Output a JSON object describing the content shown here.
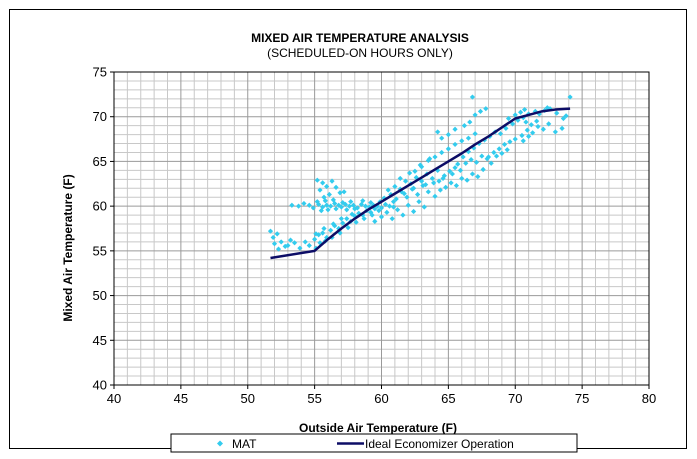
{
  "chart_data": {
    "type": "scatter",
    "title": "MIXED AIR TEMPERATURE ANALYSIS",
    "subtitle": "(SCHEDULED-ON HOURS ONLY)",
    "xlabel": "Outside Air Temperature (F)",
    "ylabel": "Mixed Air Temperature (F)",
    "xlim": [
      40,
      80
    ],
    "ylim": [
      40,
      75
    ],
    "x_major_ticks": [
      "40",
      "45",
      "50",
      "55",
      "60",
      "65",
      "70",
      "75",
      "80"
    ],
    "y_major_ticks": [
      "40",
      "45",
      "50",
      "55",
      "60",
      "65",
      "70",
      "75"
    ],
    "grid": true,
    "minor_grid_step": 1,
    "legend_position": "bottom",
    "series": [
      {
        "name": "MAT",
        "kind": "scatter",
        "marker": "diamond",
        "color": "#33CCEE",
        "points": [
          [
            51.7,
            57.2
          ],
          [
            51.9,
            56.5
          ],
          [
            52.0,
            55.8
          ],
          [
            52.2,
            56.9
          ],
          [
            52.5,
            56.0
          ],
          [
            52.8,
            55.5
          ],
          [
            53.2,
            56.2
          ],
          [
            53.5,
            55.9
          ],
          [
            53.9,
            55.3
          ],
          [
            54.3,
            56.0
          ],
          [
            52.3,
            55.2
          ],
          [
            53.0,
            55.6
          ],
          [
            54.6,
            55.6
          ],
          [
            55.1,
            55.3
          ],
          [
            53.3,
            60.1
          ],
          [
            53.8,
            60.0
          ],
          [
            54.2,
            60.3
          ],
          [
            54.6,
            60.1
          ],
          [
            54.9,
            59.8
          ],
          [
            55.3,
            60.2
          ],
          [
            55.6,
            59.9
          ],
          [
            55.9,
            60.1
          ],
          [
            56.2,
            60.0
          ],
          [
            56.5,
            60.3
          ],
          [
            56.8,
            60.1
          ],
          [
            57.0,
            59.9
          ],
          [
            57.3,
            60.2
          ],
          [
            57.6,
            60.0
          ],
          [
            57.9,
            60.1
          ],
          [
            58.2,
            59.8
          ],
          [
            58.5,
            60.2
          ],
          [
            58.8,
            60.0
          ],
          [
            59.1,
            59.9
          ],
          [
            59.4,
            60.1
          ],
          [
            59.7,
            60.0
          ],
          [
            60.0,
            59.8
          ],
          [
            60.3,
            60.2
          ],
          [
            60.6,
            60.0
          ],
          [
            60.9,
            59.9
          ],
          [
            55.5,
            59.5
          ],
          [
            56.0,
            59.6
          ],
          [
            56.6,
            59.7
          ],
          [
            57.4,
            59.6
          ],
          [
            58.0,
            59.7
          ],
          [
            55.2,
            60.5
          ],
          [
            55.8,
            60.6
          ],
          [
            56.4,
            60.7
          ],
          [
            57.1,
            60.4
          ],
          [
            57.7,
            60.5
          ],
          [
            58.6,
            60.6
          ],
          [
            59.2,
            60.4
          ],
          [
            59.9,
            60.5
          ],
          [
            55.2,
            62.9
          ],
          [
            55.6,
            62.6
          ],
          [
            55.9,
            62.2
          ],
          [
            56.3,
            62.8
          ],
          [
            56.6,
            62.1
          ],
          [
            56.9,
            61.5
          ],
          [
            55.4,
            61.8
          ],
          [
            56.1,
            61.3
          ],
          [
            57.2,
            61.6
          ],
          [
            55.7,
            61.0
          ],
          [
            55.0,
            56.3
          ],
          [
            55.3,
            56.8
          ],
          [
            55.6,
            57.0
          ],
          [
            55.9,
            56.5
          ],
          [
            56.2,
            57.3
          ],
          [
            56.5,
            57.8
          ],
          [
            56.8,
            57.5
          ],
          [
            57.1,
            58.1
          ],
          [
            57.4,
            58.6
          ],
          [
            57.7,
            58.3
          ],
          [
            58.0,
            58.9
          ],
          [
            58.3,
            59.2
          ],
          [
            58.6,
            59.0
          ],
          [
            58.9,
            59.5
          ],
          [
            59.2,
            59.3
          ],
          [
            59.5,
            59.7
          ],
          [
            55.4,
            55.9
          ],
          [
            55.8,
            56.1
          ],
          [
            56.3,
            56.5
          ],
          [
            56.9,
            57.0
          ],
          [
            57.5,
            57.6
          ],
          [
            58.1,
            58.2
          ],
          [
            58.7,
            58.6
          ],
          [
            59.3,
            59.0
          ],
          [
            59.8,
            59.5
          ],
          [
            55.1,
            56.9
          ],
          [
            55.7,
            57.5
          ],
          [
            56.4,
            58.0
          ],
          [
            57.0,
            58.6
          ],
          [
            57.8,
            59.1
          ],
          [
            59.5,
            58.3
          ],
          [
            60.0,
            58.8
          ],
          [
            60.4,
            59.3
          ],
          [
            60.8,
            58.6
          ],
          [
            61.2,
            59.6
          ],
          [
            61.6,
            59.0
          ],
          [
            62.0,
            60.1
          ],
          [
            62.4,
            59.4
          ],
          [
            62.8,
            60.5
          ],
          [
            63.2,
            59.9
          ],
          [
            60.2,
            60.9
          ],
          [
            60.7,
            61.3
          ],
          [
            61.1,
            60.8
          ],
          [
            61.5,
            61.6
          ],
          [
            61.9,
            61.0
          ],
          [
            62.3,
            61.9
          ],
          [
            62.7,
            61.3
          ],
          [
            63.1,
            62.3
          ],
          [
            63.5,
            61.6
          ],
          [
            63.9,
            62.6
          ],
          [
            60.5,
            61.8
          ],
          [
            61.0,
            62.2
          ],
          [
            61.4,
            61.9
          ],
          [
            61.8,
            62.8
          ],
          [
            62.2,
            62.5
          ],
          [
            62.6,
            63.2
          ],
          [
            63.0,
            62.8
          ],
          [
            63.4,
            63.6
          ],
          [
            63.8,
            63.1
          ],
          [
            64.2,
            64.0
          ],
          [
            64.0,
            61.1
          ],
          [
            64.4,
            61.8
          ],
          [
            64.8,
            62.1
          ],
          [
            65.2,
            62.6
          ],
          [
            65.6,
            62.3
          ],
          [
            66.0,
            63.1
          ],
          [
            66.4,
            62.9
          ],
          [
            66.8,
            63.6
          ],
          [
            67.2,
            63.3
          ],
          [
            67.6,
            64.1
          ],
          [
            64.3,
            62.8
          ],
          [
            64.7,
            63.4
          ],
          [
            65.1,
            63.9
          ],
          [
            65.5,
            64.3
          ],
          [
            65.9,
            64.0
          ],
          [
            66.3,
            64.8
          ],
          [
            66.7,
            65.2
          ],
          [
            67.1,
            64.9
          ],
          [
            67.5,
            65.6
          ],
          [
            67.9,
            65.3
          ],
          [
            62.5,
            63.9
          ],
          [
            63.0,
            64.4
          ],
          [
            63.5,
            65.1
          ],
          [
            64.0,
            65.5
          ],
          [
            64.5,
            66.0
          ],
          [
            65.0,
            66.4
          ],
          [
            65.5,
            66.9
          ],
          [
            66.0,
            67.3
          ],
          [
            66.5,
            67.6
          ],
          [
            67.0,
            68.1
          ],
          [
            64.2,
            68.3
          ],
          [
            64.5,
            67.6
          ],
          [
            65.0,
            68.0
          ],
          [
            65.5,
            68.6
          ],
          [
            66.2,
            69.0
          ],
          [
            66.6,
            69.4
          ],
          [
            67.0,
            70.2
          ],
          [
            67.4,
            70.6
          ],
          [
            67.8,
            70.9
          ],
          [
            66.8,
            72.2
          ],
          [
            65.7,
            64.7
          ],
          [
            66.1,
            65.5
          ],
          [
            66.5,
            66.1
          ],
          [
            66.9,
            66.5
          ],
          [
            67.3,
            67.0
          ],
          [
            67.7,
            67.4
          ],
          [
            68.1,
            67.8
          ],
          [
            68.5,
            68.3
          ],
          [
            68.9,
            68.1
          ],
          [
            69.3,
            68.7
          ],
          [
            68.0,
            65.5
          ],
          [
            68.4,
            66.0
          ],
          [
            68.8,
            66.4
          ],
          [
            69.2,
            66.9
          ],
          [
            69.6,
            67.2
          ],
          [
            70.0,
            67.5
          ],
          [
            68.2,
            64.8
          ],
          [
            68.6,
            65.6
          ],
          [
            69.0,
            65.9
          ],
          [
            69.4,
            66.3
          ],
          [
            69.8,
            69.2
          ],
          [
            70.2,
            69.6
          ],
          [
            70.6,
            69.9
          ],
          [
            71.0,
            70.3
          ],
          [
            69.5,
            69.8
          ],
          [
            70.0,
            70.2
          ],
          [
            70.4,
            70.5
          ],
          [
            70.8,
            69.4
          ],
          [
            71.2,
            69.1
          ],
          [
            71.6,
            69.5
          ],
          [
            70.5,
            67.9
          ],
          [
            70.9,
            68.5
          ],
          [
            71.3,
            68.2
          ],
          [
            71.7,
            68.9
          ],
          [
            72.1,
            68.6
          ],
          [
            72.5,
            69.2
          ],
          [
            70.6,
            67.3
          ],
          [
            71.0,
            67.8
          ],
          [
            73.0,
            68.3
          ],
          [
            73.5,
            68.7
          ],
          [
            71.8,
            70.3
          ],
          [
            72.2,
            70.7
          ],
          [
            72.6,
            70.9
          ],
          [
            73.1,
            70.4
          ],
          [
            73.6,
            69.8
          ],
          [
            74.1,
            72.2
          ],
          [
            72.4,
            71.0
          ],
          [
            73.8,
            70.1
          ],
          [
            70.7,
            70.8
          ],
          [
            71.5,
            70.6
          ],
          [
            61.4,
            63.1
          ],
          [
            62.1,
            63.7
          ],
          [
            62.9,
            64.6
          ],
          [
            63.6,
            65.3
          ],
          [
            61.7,
            61.4
          ],
          [
            62.4,
            62.0
          ],
          [
            63.3,
            62.4
          ],
          [
            64.6,
            63.1
          ],
          [
            65.3,
            63.6
          ],
          [
            60.9,
            60.5
          ]
        ]
      },
      {
        "name": "Ideal Economizer Operation",
        "kind": "line",
        "color": "#0D0D66",
        "points": [
          [
            51.7,
            54.2
          ],
          [
            55.0,
            55.0
          ],
          [
            56.0,
            56.3
          ],
          [
            57.0,
            57.5
          ],
          [
            58.0,
            58.6
          ],
          [
            59.0,
            59.6
          ],
          [
            60.0,
            60.5
          ],
          [
            61.0,
            61.4
          ],
          [
            62.0,
            62.3
          ],
          [
            63.0,
            63.2
          ],
          [
            64.0,
            64.1
          ],
          [
            65.0,
            65.0
          ],
          [
            66.0,
            65.9
          ],
          [
            67.0,
            66.9
          ],
          [
            68.0,
            67.8
          ],
          [
            69.0,
            68.8
          ],
          [
            70.0,
            69.8
          ],
          [
            71.0,
            70.2
          ],
          [
            72.0,
            70.6
          ],
          [
            73.0,
            70.8
          ],
          [
            74.1,
            70.9
          ]
        ]
      }
    ]
  }
}
